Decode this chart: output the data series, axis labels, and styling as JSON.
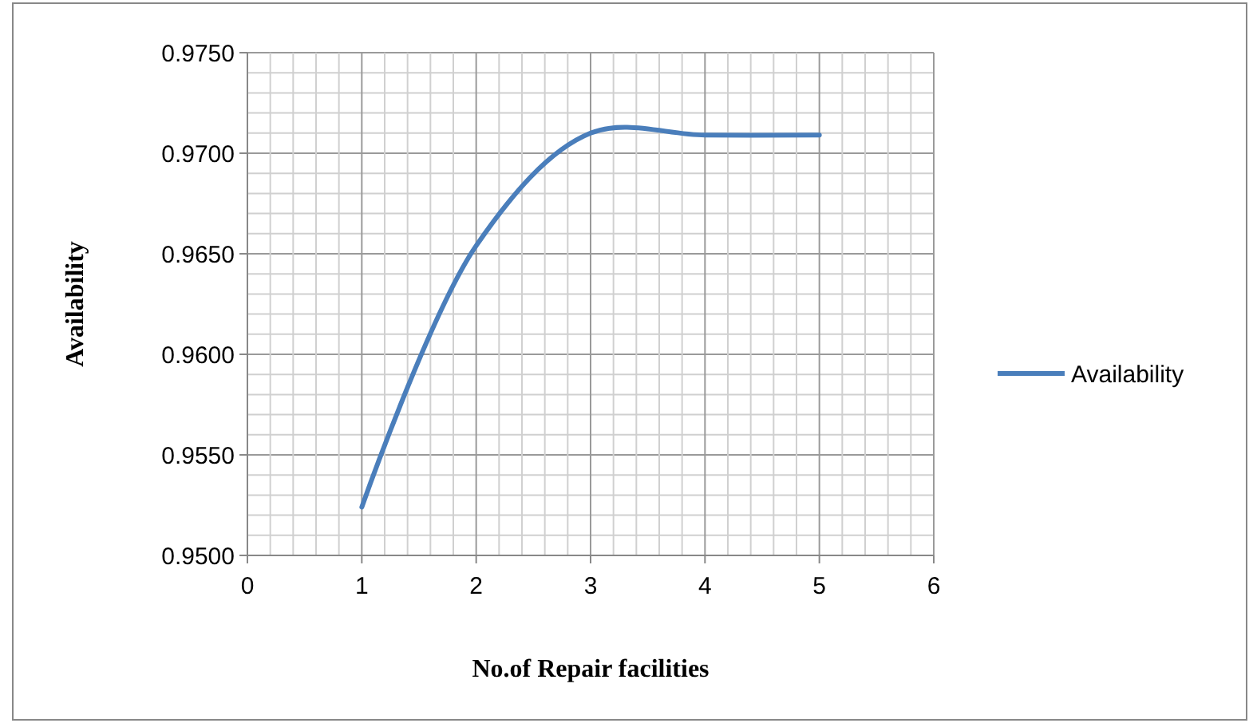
{
  "chart_data": {
    "type": "line",
    "xlabel": "No.of Repair facilities",
    "ylabel": "Availability",
    "x": [
      1,
      2,
      3,
      4,
      5
    ],
    "series": [
      {
        "name": "Availability",
        "color": "#4a7ebb",
        "values": [
          0.9524,
          0.9654,
          0.971,
          0.9709,
          0.9709
        ]
      }
    ],
    "xlim": [
      0,
      6
    ],
    "xticks": [
      0,
      1,
      2,
      3,
      4,
      5,
      6
    ],
    "ylim": [
      0.95,
      0.975
    ],
    "yticks": [
      {
        "value": 0.95,
        "label": "0.9500"
      },
      {
        "value": 0.955,
        "label": "0.9550"
      },
      {
        "value": 0.96,
        "label": "0.9600"
      },
      {
        "value": 0.965,
        "label": "0.9650"
      },
      {
        "value": 0.97,
        "label": "0.9700"
      },
      {
        "value": 0.975,
        "label": "0.9750"
      }
    ],
    "grid": true,
    "legend": "right",
    "marker": "none",
    "line_style": "solid"
  }
}
